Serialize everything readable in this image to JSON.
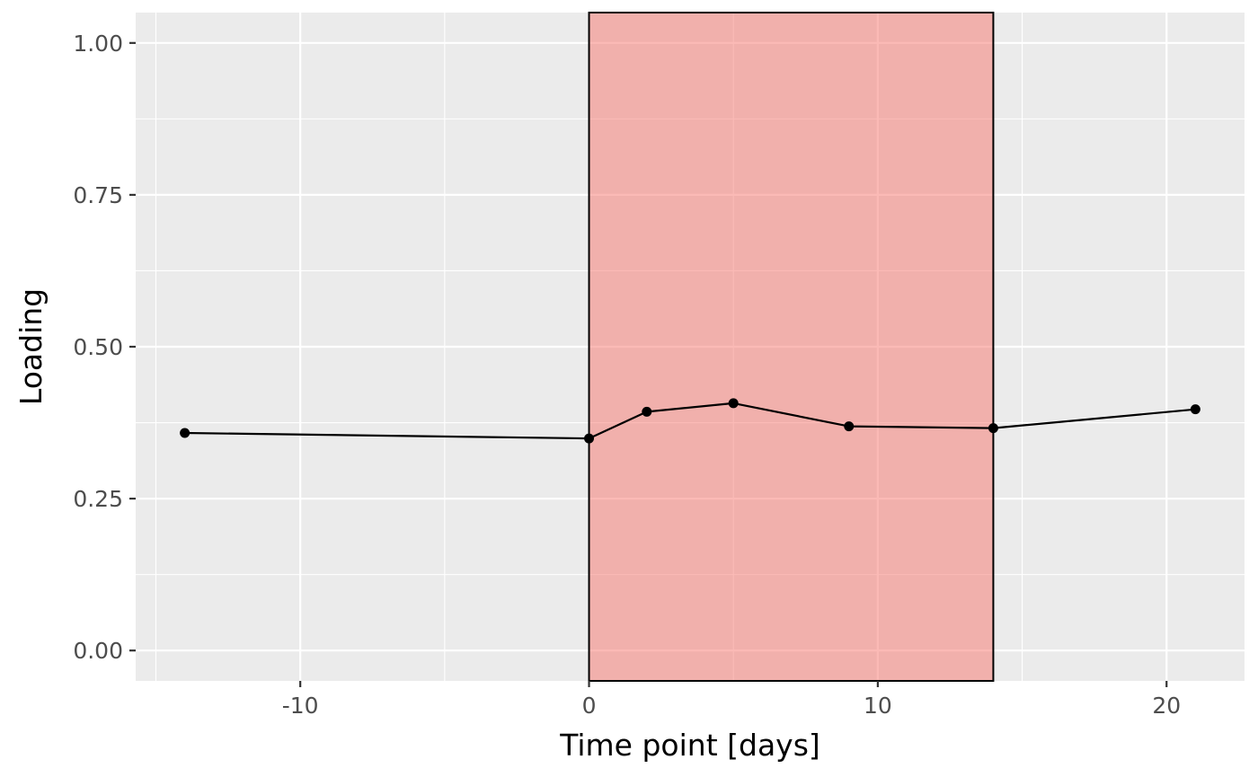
{
  "chart_data": {
    "type": "line",
    "xlabel": "Time point [days]",
    "ylabel": "Loading",
    "xlim": [
      -15.7,
      22.7
    ],
    "ylim": [
      -0.05,
      1.05
    ],
    "x_ticks": [
      -10,
      0,
      10,
      20
    ],
    "x_tick_labels": [
      "-10",
      "0",
      "10",
      "20"
    ],
    "y_ticks": [
      0,
      0.25,
      0.5,
      0.75,
      1
    ],
    "y_tick_labels": [
      "0.00",
      "0.25",
      "0.50",
      "0.75",
      "1.00"
    ],
    "grid": true,
    "series": [
      {
        "x": [
          -14,
          0,
          2,
          5,
          9,
          14,
          21
        ],
        "y": [
          0.358,
          0.349,
          0.393,
          0.407,
          0.369,
          0.366,
          0.397
        ]
      }
    ],
    "shaded_region": {
      "x_start": 0,
      "x_end": 14,
      "color": "#f8766d",
      "opacity": 0.5
    },
    "colors": {
      "panel_background": "#ebebeb",
      "grid": "#ffffff",
      "line": "#000000",
      "point": "#000000"
    }
  }
}
